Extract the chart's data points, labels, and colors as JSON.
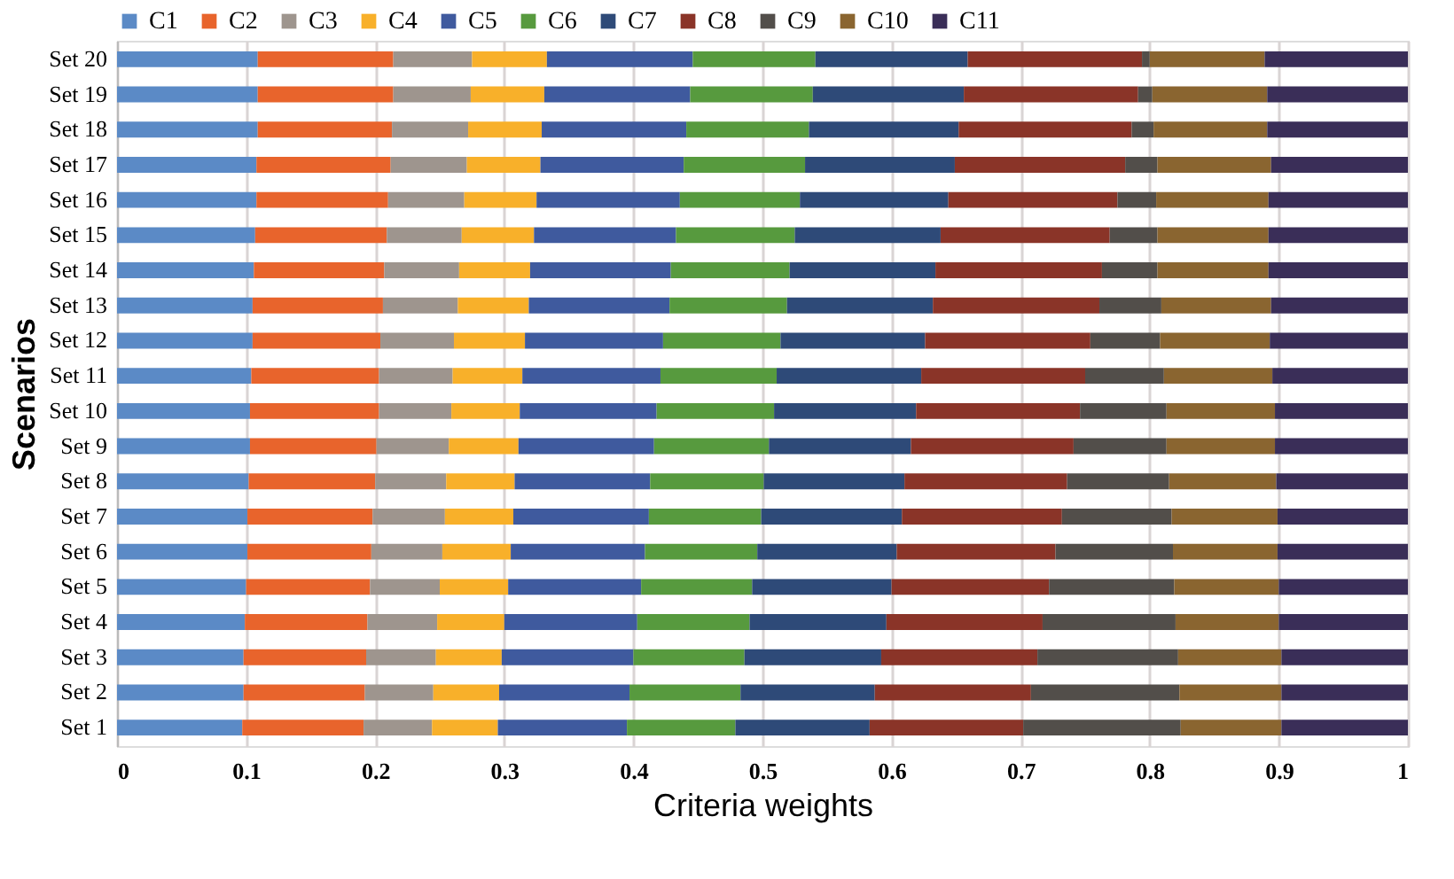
{
  "chart_data": {
    "type": "bar",
    "orientation": "horizontal",
    "stacked": true,
    "xlabel": "Criteria weights",
    "ylabel": "Scenarios",
    "categories": [
      "Set 20",
      "Set 19",
      "Set 18",
      "Set 17",
      "Set 16",
      "Set 15",
      "Set 14",
      "Set 13",
      "Set 12",
      "Set 11",
      "Set 10",
      "Set 9",
      "Set 8",
      "Set 7",
      "Set 6",
      "Set 5",
      "Set 4",
      "Set 3",
      "Set 2",
      "Set 1"
    ],
    "series": [
      {
        "name": "C1",
        "color": "#5b8ac6",
        "values": [
          0.109,
          0.109,
          0.109,
          0.108,
          0.108,
          0.107,
          0.106,
          0.105,
          0.105,
          0.104,
          0.103,
          0.103,
          0.102,
          0.101,
          0.101,
          0.1,
          0.099,
          0.098,
          0.098,
          0.097
        ]
      },
      {
        "name": "C2",
        "color": "#e8642c",
        "values": [
          0.105,
          0.105,
          0.104,
          0.104,
          0.102,
          0.102,
          0.101,
          0.101,
          0.099,
          0.099,
          0.1,
          0.098,
          0.098,
          0.097,
          0.096,
          0.096,
          0.095,
          0.095,
          0.094,
          0.094
        ]
      },
      {
        "name": "C3",
        "color": "#9e958e",
        "values": [
          0.061,
          0.06,
          0.059,
          0.059,
          0.059,
          0.058,
          0.058,
          0.058,
          0.057,
          0.057,
          0.056,
          0.056,
          0.055,
          0.056,
          0.055,
          0.054,
          0.054,
          0.054,
          0.053,
          0.053
        ]
      },
      {
        "name": "C4",
        "color": "#f8b02a",
        "values": [
          0.058,
          0.057,
          0.057,
          0.057,
          0.056,
          0.056,
          0.055,
          0.055,
          0.055,
          0.054,
          0.053,
          0.054,
          0.053,
          0.053,
          0.053,
          0.053,
          0.052,
          0.051,
          0.051,
          0.051
        ]
      },
      {
        "name": "C5",
        "color": "#3f5a9e",
        "values": [
          0.113,
          0.113,
          0.112,
          0.111,
          0.111,
          0.11,
          0.109,
          0.109,
          0.107,
          0.107,
          0.106,
          0.105,
          0.105,
          0.105,
          0.104,
          0.103,
          0.103,
          0.102,
          0.101,
          0.1
        ]
      },
      {
        "name": "C6",
        "color": "#579a3e",
        "values": [
          0.095,
          0.095,
          0.095,
          0.094,
          0.093,
          0.092,
          0.092,
          0.091,
          0.091,
          0.09,
          0.091,
          0.089,
          0.088,
          0.087,
          0.087,
          0.086,
          0.087,
          0.086,
          0.086,
          0.084
        ]
      },
      {
        "name": "C7",
        "color": "#2e4a78",
        "values": [
          0.118,
          0.117,
          0.116,
          0.116,
          0.115,
          0.113,
          0.113,
          0.113,
          0.112,
          0.112,
          0.11,
          0.11,
          0.109,
          0.109,
          0.108,
          0.108,
          0.106,
          0.106,
          0.104,
          0.104
        ]
      },
      {
        "name": "C8",
        "color": "#8a3428",
        "values": [
          0.135,
          0.135,
          0.134,
          0.132,
          0.131,
          0.131,
          0.129,
          0.129,
          0.128,
          0.127,
          0.127,
          0.126,
          0.126,
          0.124,
          0.123,
          0.122,
          0.121,
          0.121,
          0.121,
          0.119
        ]
      },
      {
        "name": "C9",
        "color": "#524e4a",
        "values": [
          0.006,
          0.011,
          0.017,
          0.025,
          0.03,
          0.037,
          0.043,
          0.048,
          0.054,
          0.061,
          0.067,
          0.072,
          0.079,
          0.085,
          0.091,
          0.097,
          0.103,
          0.109,
          0.115,
          0.122
        ]
      },
      {
        "name": "C10",
        "color": "#8a6530",
        "values": [
          0.089,
          0.089,
          0.088,
          0.088,
          0.087,
          0.086,
          0.086,
          0.085,
          0.085,
          0.084,
          0.084,
          0.084,
          0.083,
          0.082,
          0.081,
          0.081,
          0.08,
          0.08,
          0.079,
          0.078
        ]
      },
      {
        "name": "C11",
        "color": "#3a2e58",
        "values": [
          0.111,
          0.109,
          0.109,
          0.106,
          0.108,
          0.108,
          0.108,
          0.106,
          0.107,
          0.105,
          0.103,
          0.103,
          0.102,
          0.101,
          0.101,
          0.1,
          0.1,
          0.098,
          0.098,
          0.098
        ]
      }
    ],
    "xlim": [
      0,
      1
    ],
    "xticks": [
      0,
      0.1,
      0.2,
      0.3,
      0.4,
      0.5,
      0.6,
      0.7,
      0.8,
      0.9,
      1
    ],
    "grid": "x",
    "legend": "top"
  }
}
